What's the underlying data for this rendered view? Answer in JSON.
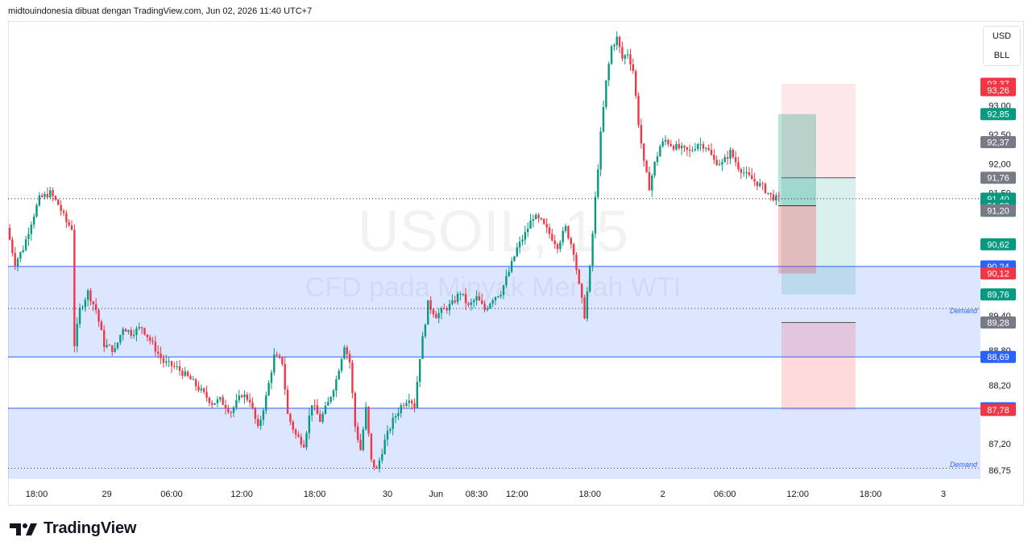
{
  "caption": "midtouindonesia dibuat dengan TradingView.com, Jun 02, 2026 11:40 UTC+7",
  "currency": {
    "top": "USD",
    "bottom": "BLL"
  },
  "brand": {
    "name": "TradingView",
    "icon": "tradingview-logo-icon"
  },
  "watermark": {
    "symbol": "USOIL, 15",
    "description": "CFD pada Minyak Mentah WTI"
  },
  "colors": {
    "up": "#089981",
    "down": "#f23645",
    "zone": "#2962ff",
    "neutral": "#787b86"
  },
  "zones": [
    {
      "label": "Demand",
      "top": 90.24,
      "bottom": 88.69
    },
    {
      "label": "Demand",
      "top": 87.81,
      "bottom": 86.6
    }
  ],
  "chart_data": {
    "type": "candlestick",
    "symbol": "USOIL",
    "timeframe": "15",
    "ylim": [
      86.6,
      94.4
    ],
    "y_ticks": [
      "93,00",
      "92,50",
      "92,00",
      "91,50",
      "89,40",
      "88,80",
      "88,20",
      "87,20",
      "86,75"
    ],
    "x_ticks": [
      "18:00",
      "29",
      "06:00",
      "12:00",
      "18:00",
      "30",
      "Jun",
      "08:30",
      "12:00",
      "18:00",
      "2",
      "06:00",
      "12:00",
      "18:00",
      "3"
    ],
    "price_labels": [
      {
        "text": "93,37",
        "value": 93.37,
        "color": "#f23645"
      },
      {
        "text": "93,26",
        "value": 93.26,
        "color": "#f23645"
      },
      {
        "text": "92,85",
        "value": 92.85,
        "color": "#089981"
      },
      {
        "text": "92,37",
        "value": 92.37,
        "color": "#787b86"
      },
      {
        "text": "91,76",
        "value": 91.76,
        "color": "#787b86"
      },
      {
        "text": "91,40",
        "value": 91.4,
        "color": "#089981",
        "sub": "04:58"
      },
      {
        "text": "91,28",
        "value": 91.28,
        "color": "#089981"
      },
      {
        "text": "91,20",
        "value": 91.2,
        "color": "#787b86"
      },
      {
        "text": "90,62",
        "value": 90.62,
        "color": "#089981"
      },
      {
        "text": "90,24",
        "value": 90.24,
        "color": "#2962ff"
      },
      {
        "text": "90,12",
        "value": 90.12,
        "color": "#f23645"
      },
      {
        "text": "89,76",
        "value": 89.76,
        "color": "#089981"
      },
      {
        "text": "89,28",
        "value": 89.28,
        "color": "#787b86"
      },
      {
        "text": "88,69",
        "value": 88.69,
        "color": "#2962ff"
      },
      {
        "text": "87,81",
        "value": 87.81,
        "color": "#2962ff"
      },
      {
        "text": "87,78",
        "value": 87.78,
        "color": "#f23645"
      }
    ],
    "trade_boxes": {
      "position_1": {
        "entry": 91.28,
        "target": 92.85,
        "stop": 90.12
      },
      "position_2": {
        "entry": 91.76,
        "target": 89.76,
        "stop": 93.37
      }
    },
    "price_path": [
      [
        0,
        90.9
      ],
      [
        3,
        90.3
      ],
      [
        6,
        90.55
      ],
      [
        9,
        91.0
      ],
      [
        12,
        91.4
      ],
      [
        16,
        91.5
      ],
      [
        19,
        91.3
      ],
      [
        22,
        91.0
      ],
      [
        24,
        90.9
      ],
      [
        25,
        88.9
      ],
      [
        27,
        89.5
      ],
      [
        30,
        89.8
      ],
      [
        33,
        89.5
      ],
      [
        36,
        88.9
      ],
      [
        40,
        88.8
      ],
      [
        43,
        89.2
      ],
      [
        46,
        89.1
      ],
      [
        50,
        89.2
      ],
      [
        54,
        88.9
      ],
      [
        58,
        88.6
      ],
      [
        63,
        88.5
      ],
      [
        68,
        88.3
      ],
      [
        73,
        88.05
      ],
      [
        76,
        87.9
      ],
      [
        79,
        87.95
      ],
      [
        83,
        87.75
      ],
      [
        87,
        88.05
      ],
      [
        90,
        87.95
      ],
      [
        93,
        87.45
      ],
      [
        96,
        88.0
      ],
      [
        99,
        88.7
      ],
      [
        102,
        88.6
      ],
      [
        104,
        87.7
      ],
      [
        107,
        87.35
      ],
      [
        110,
        87.2
      ],
      [
        113,
        87.9
      ],
      [
        116,
        87.6
      ],
      [
        119,
        87.9
      ],
      [
        122,
        88.3
      ],
      [
        125,
        88.9
      ],
      [
        127,
        88.6
      ],
      [
        129,
        87.5
      ],
      [
        131,
        87.1
      ],
      [
        133,
        87.8
      ],
      [
        135,
        86.9
      ],
      [
        137,
        86.75
      ],
      [
        140,
        87.25
      ],
      [
        143,
        87.6
      ],
      [
        146,
        87.85
      ],
      [
        149,
        88.0
      ],
      [
        151,
        87.85
      ],
      [
        153,
        88.7
      ],
      [
        156,
        89.6
      ],
      [
        159,
        89.4
      ],
      [
        162,
        89.5
      ],
      [
        165,
        89.6
      ],
      [
        168,
        89.8
      ],
      [
        171,
        89.55
      ],
      [
        174,
        89.7
      ],
      [
        177,
        89.5
      ],
      [
        180,
        89.7
      ],
      [
        183,
        89.8
      ],
      [
        186,
        90.15
      ],
      [
        189,
        90.55
      ],
      [
        192,
        90.8
      ],
      [
        195,
        91.1
      ],
      [
        198,
        91.0
      ],
      [
        201,
        90.8
      ],
      [
        204,
        90.6
      ],
      [
        207,
        90.9
      ],
      [
        210,
        90.5
      ],
      [
        212,
        89.9
      ],
      [
        214,
        89.4
      ],
      [
        216,
        90.2
      ],
      [
        218,
        91.4
      ],
      [
        220,
        92.5
      ],
      [
        222,
        93.4
      ],
      [
        224,
        94.0
      ],
      [
        226,
        94.15
      ],
      [
        228,
        93.8
      ],
      [
        230,
        93.9
      ],
      [
        232,
        93.6
      ],
      [
        234,
        92.7
      ],
      [
        236,
        92.0
      ],
      [
        238,
        91.6
      ],
      [
        240,
        92.0
      ],
      [
        242,
        92.3
      ],
      [
        244,
        92.4
      ],
      [
        247,
        92.3
      ],
      [
        250,
        92.25
      ],
      [
        253,
        92.2
      ],
      [
        256,
        92.35
      ],
      [
        259,
        92.3
      ],
      [
        262,
        92.05
      ],
      [
        265,
        92.0
      ],
      [
        268,
        92.2
      ],
      [
        271,
        91.95
      ],
      [
        274,
        91.8
      ],
      [
        277,
        91.7
      ],
      [
        280,
        91.6
      ],
      [
        283,
        91.45
      ],
      [
        285,
        91.4
      ]
    ]
  }
}
